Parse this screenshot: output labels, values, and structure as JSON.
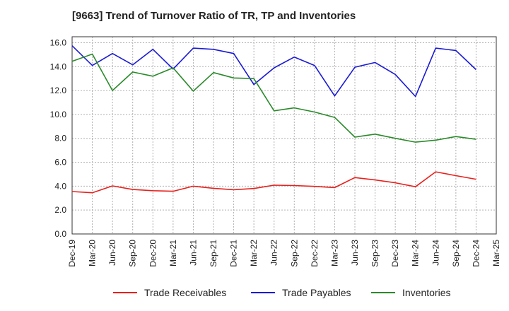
{
  "chart_data": {
    "type": "line",
    "title": "[9663]  Trend of Turnover Ratio of TR, TP and Inventories",
    "xlabel": "",
    "ylabel": "",
    "ylim": [
      0,
      16.5
    ],
    "yticks": [
      "0.0",
      "2.0",
      "4.0",
      "6.0",
      "8.0",
      "10.0",
      "12.0",
      "14.0",
      "16.0"
    ],
    "x": [
      "Dec-19",
      "Mar-20",
      "Jun-20",
      "Sep-20",
      "Dec-20",
      "Mar-21",
      "Jun-21",
      "Sep-21",
      "Dec-21",
      "Mar-22",
      "Jun-22",
      "Sep-22",
      "Dec-22",
      "Mar-23",
      "Jun-23",
      "Sep-23",
      "Dec-23",
      "Mar-24",
      "Jun-24",
      "Sep-24",
      "Dec-24"
    ],
    "xticks": [
      "Dec-19",
      "Mar-20",
      "Jun-20",
      "Sep-20",
      "Dec-20",
      "Mar-21",
      "Jun-21",
      "Sep-21",
      "Dec-21",
      "Mar-22",
      "Jun-22",
      "Sep-22",
      "Dec-22",
      "Mar-23",
      "Jun-23",
      "Sep-23",
      "Dec-23",
      "Mar-24",
      "Jun-24",
      "Sep-24",
      "Dec-24",
      "Mar-25"
    ],
    "grid": true,
    "legend_position": "bottom",
    "series": [
      {
        "name": "Trade Receivables",
        "color": "#e8201c",
        "values": [
          3.55,
          3.45,
          4.02,
          3.72,
          3.62,
          3.57,
          4.0,
          3.82,
          3.7,
          3.8,
          4.08,
          4.05,
          3.98,
          3.88,
          4.72,
          4.52,
          4.28,
          3.95,
          5.2,
          4.88,
          4.58
        ]
      },
      {
        "name": "Trade Payables",
        "color": "#1a1ad4",
        "values": [
          15.75,
          14.1,
          15.1,
          14.15,
          15.45,
          13.8,
          15.55,
          15.45,
          15.1,
          12.5,
          13.9,
          14.8,
          14.1,
          11.55,
          13.95,
          14.35,
          13.35,
          11.5,
          15.55,
          15.35,
          13.75
        ]
      },
      {
        "name": "Inventories",
        "color": "#2a8a2a",
        "values": [
          14.45,
          15.05,
          12.0,
          13.55,
          13.2,
          13.9,
          11.95,
          13.5,
          13.05,
          13.0,
          10.3,
          10.55,
          10.2,
          9.75,
          8.1,
          8.35,
          8.0,
          7.68,
          7.85,
          8.15,
          7.92
        ]
      }
    ]
  }
}
